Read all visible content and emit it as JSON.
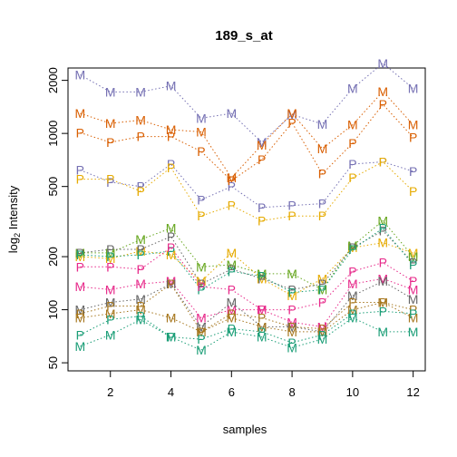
{
  "chart_data": {
    "type": "line",
    "title": "189_s_at",
    "xlabel": "samples",
    "ylabel": "log2 Intensity",
    "ylabel_main": "log",
    "ylabel_sub": "2",
    "ylabel_rest": " Intensity",
    "y_scale": "log2",
    "xlim": [
      0.6,
      12.4
    ],
    "ylim": [
      45,
      2350
    ],
    "x_ticks": [
      2,
      4,
      6,
      8,
      10,
      12
    ],
    "x_tick_labels": [
      "2",
      "4",
      "6",
      "8",
      "10",
      "12"
    ],
    "y_ticks": [
      50,
      100,
      200,
      500,
      1000,
      2000
    ],
    "y_tick_labels": [
      "50",
      "100",
      "200",
      "500",
      "1000",
      "2000"
    ],
    "grid": false,
    "legend": "none",
    "x": [
      1,
      2,
      3,
      4,
      5,
      6,
      7,
      8,
      9,
      10,
      11,
      12
    ],
    "series": [
      {
        "marker": "M",
        "color": "#7570B3",
        "values": [
          2150,
          1720,
          1720,
          1860,
          1220,
          1300,
          890,
          1280,
          1130,
          1800,
          2500,
          1800
        ]
      },
      {
        "marker": "P",
        "color": "#7570B3",
        "values": [
          620,
          530,
          500,
          670,
          420,
          500,
          380,
          390,
          400,
          670,
          690,
          610
        ]
      },
      {
        "marker": "M",
        "color": "#D95F02",
        "values": [
          1300,
          1140,
          1190,
          1050,
          1020,
          560,
          860,
          1300,
          820,
          1120,
          1730,
          1120
        ]
      },
      {
        "marker": "P",
        "color": "#D95F02",
        "values": [
          1010,
          890,
          960,
          960,
          790,
          540,
          710,
          1150,
          590,
          880,
          1460,
          950
        ]
      },
      {
        "marker": "P",
        "color": "#E6AB02",
        "values": [
          550,
          550,
          470,
          640,
          340,
          390,
          320,
          340,
          340,
          560,
          690,
          470
        ]
      },
      {
        "marker": "M",
        "color": "#E6AB02",
        "values": [
          200,
          195,
          215,
          205,
          145,
          210,
          150,
          120,
          150,
          225,
          240,
          210
        ]
      },
      {
        "marker": "M",
        "color": "#66A61E",
        "values": [
          210,
          210,
          250,
          290,
          175,
          180,
          160,
          160,
          130,
          230,
          320,
          200
        ]
      },
      {
        "marker": "P",
        "color": "#666666",
        "values": [
          210,
          220,
          220,
          260,
          140,
          170,
          150,
          130,
          140,
          225,
          280,
          185
        ]
      },
      {
        "marker": "P",
        "color": "#1B9E77",
        "values": [
          205,
          200,
          205,
          215,
          130,
          165,
          155,
          125,
          130,
          220,
          290,
          180
        ]
      },
      {
        "marker": "P",
        "color": "#E7298A",
        "values": [
          175,
          175,
          170,
          225,
          135,
          130,
          100,
          100,
          110,
          165,
          185,
          145
        ]
      },
      {
        "marker": "M",
        "color": "#E7298A",
        "values": [
          135,
          130,
          140,
          145,
          90,
          100,
          100,
          85,
          80,
          140,
          150,
          130
        ]
      },
      {
        "marker": "M",
        "color": "#666666",
        "values": [
          100,
          110,
          115,
          140,
          80,
          110,
          80,
          80,
          75,
          120,
          145,
          115
        ]
      },
      {
        "marker": "P",
        "color": "#A6761D",
        "values": [
          95,
          105,
          105,
          140,
          75,
          95,
          90,
          80,
          78,
          110,
          110,
          100
        ]
      },
      {
        "marker": "M",
        "color": "#A6761D",
        "values": [
          90,
          95,
          100,
          90,
          75,
          90,
          80,
          75,
          75,
          100,
          110,
          90
        ]
      },
      {
        "marker": "P",
        "color": "#1B9E77",
        "values": [
          72,
          88,
          92,
          70,
          68,
          78,
          75,
          65,
          72,
          95,
          98,
          95
        ]
      },
      {
        "marker": "M",
        "color": "#1B9E77",
        "values": [
          62,
          72,
          88,
          70,
          59,
          75,
          70,
          61,
          68,
          90,
          75,
          75
        ]
      }
    ]
  }
}
